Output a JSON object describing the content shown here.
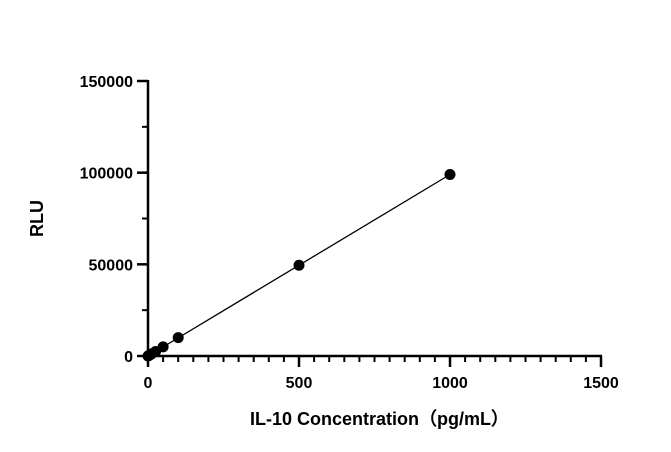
{
  "chart_data": {
    "type": "scatter",
    "title": "",
    "xlabel": "IL-10 Concentration（pg/mL）",
    "ylabel": "RLU",
    "xlim": [
      0,
      1500
    ],
    "ylim": [
      0,
      150000
    ],
    "x_ticks": [
      "0",
      "500",
      "1000",
      "1500"
    ],
    "y_ticks": [
      "0",
      "50000",
      "100000",
      "150000"
    ],
    "grid": false,
    "legend": "none",
    "fit_line": true,
    "series": [
      {
        "x": [
          0,
          3.125,
          6.25,
          12.5,
          25,
          50,
          100,
          500,
          1000
        ],
        "y": [
          0,
          310,
          620,
          1240,
          2480,
          5000,
          10000,
          49500,
          99000
        ]
      }
    ],
    "colors": {
      "marker": "#000000",
      "line": "#000000",
      "axis": "#000000"
    }
  }
}
